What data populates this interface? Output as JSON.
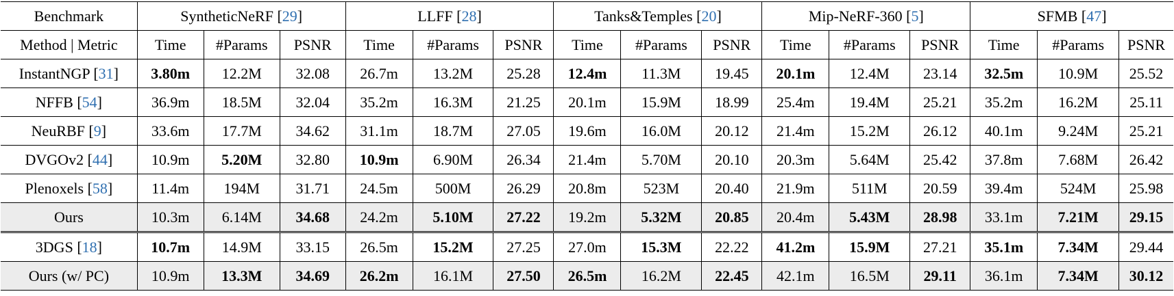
{
  "header": {
    "benchmark_label": "Benchmark",
    "datasets": [
      {
        "name": "SyntheticNeRF",
        "cite": "29"
      },
      {
        "name": "LLFF",
        "cite": "28"
      },
      {
        "name": "Tanks&Temples",
        "cite": "20"
      },
      {
        "name": "Mip-NeRF-360",
        "cite": "5"
      },
      {
        "name": "SFMB",
        "cite": "47"
      }
    ],
    "method_metric_label": "Method | Metric",
    "metrics": [
      "Time",
      "#Params",
      "PSNR"
    ]
  },
  "rows": [
    {
      "method": "InstantNGP",
      "cite": "31",
      "shaded": false,
      "cells": [
        {
          "v": "3.80m",
          "b": true
        },
        {
          "v": "12.2M",
          "b": false
        },
        {
          "v": "32.08",
          "b": false
        },
        {
          "v": "26.7m",
          "b": false
        },
        {
          "v": "13.2M",
          "b": false
        },
        {
          "v": "25.28",
          "b": false
        },
        {
          "v": "12.4m",
          "b": true
        },
        {
          "v": "11.3M",
          "b": false
        },
        {
          "v": "19.45",
          "b": false
        },
        {
          "v": "20.1m",
          "b": true
        },
        {
          "v": "12.4M",
          "b": false
        },
        {
          "v": "23.14",
          "b": false
        },
        {
          "v": "32.5m",
          "b": true
        },
        {
          "v": "10.9M",
          "b": false
        },
        {
          "v": "25.52",
          "b": false
        }
      ]
    },
    {
      "method": "NFFB",
      "cite": "54",
      "shaded": false,
      "cells": [
        {
          "v": "36.9m",
          "b": false
        },
        {
          "v": "18.5M",
          "b": false
        },
        {
          "v": "32.04",
          "b": false
        },
        {
          "v": "35.2m",
          "b": false
        },
        {
          "v": "16.3M",
          "b": false
        },
        {
          "v": "21.25",
          "b": false
        },
        {
          "v": "20.1m",
          "b": false
        },
        {
          "v": "15.9M",
          "b": false
        },
        {
          "v": "18.99",
          "b": false
        },
        {
          "v": "25.4m",
          "b": false
        },
        {
          "v": "19.4M",
          "b": false
        },
        {
          "v": "25.21",
          "b": false
        },
        {
          "v": "35.2m",
          "b": false
        },
        {
          "v": "16.2M",
          "b": false
        },
        {
          "v": "25.11",
          "b": false
        }
      ]
    },
    {
      "method": "NeuRBF",
      "cite": "9",
      "shaded": false,
      "cells": [
        {
          "v": "33.6m",
          "b": false
        },
        {
          "v": "17.7M",
          "b": false
        },
        {
          "v": "34.62",
          "b": false
        },
        {
          "v": "31.1m",
          "b": false
        },
        {
          "v": "18.7M",
          "b": false
        },
        {
          "v": "27.05",
          "b": false
        },
        {
          "v": "19.6m",
          "b": false
        },
        {
          "v": "16.0M",
          "b": false
        },
        {
          "v": "20.12",
          "b": false
        },
        {
          "v": "21.4m",
          "b": false
        },
        {
          "v": "15.2M",
          "b": false
        },
        {
          "v": "26.12",
          "b": false
        },
        {
          "v": "40.1m",
          "b": false
        },
        {
          "v": "9.24M",
          "b": false
        },
        {
          "v": "25.21",
          "b": false
        }
      ]
    },
    {
      "method": "DVGOv2",
      "cite": "44",
      "shaded": false,
      "cells": [
        {
          "v": "10.9m",
          "b": false
        },
        {
          "v": "5.20M",
          "b": true
        },
        {
          "v": "32.80",
          "b": false
        },
        {
          "v": "10.9m",
          "b": true
        },
        {
          "v": "6.90M",
          "b": false
        },
        {
          "v": "26.34",
          "b": false
        },
        {
          "v": "21.4m",
          "b": false
        },
        {
          "v": "5.70M",
          "b": false
        },
        {
          "v": "20.10",
          "b": false
        },
        {
          "v": "20.3m",
          "b": false
        },
        {
          "v": "5.64M",
          "b": false
        },
        {
          "v": "25.42",
          "b": false
        },
        {
          "v": "37.8m",
          "b": false
        },
        {
          "v": "7.68M",
          "b": false
        },
        {
          "v": "26.42",
          "b": false
        }
      ]
    },
    {
      "method": "Plenoxels",
      "cite": "58",
      "shaded": false,
      "cells": [
        {
          "v": "11.4m",
          "b": false
        },
        {
          "v": "194M",
          "b": false
        },
        {
          "v": "31.71",
          "b": false
        },
        {
          "v": "24.5m",
          "b": false
        },
        {
          "v": "500M",
          "b": false
        },
        {
          "v": "26.29",
          "b": false
        },
        {
          "v": "20.8m",
          "b": false
        },
        {
          "v": "523M",
          "b": false
        },
        {
          "v": "20.40",
          "b": false
        },
        {
          "v": "21.9m",
          "b": false
        },
        {
          "v": "511M",
          "b": false
        },
        {
          "v": "20.59",
          "b": false
        },
        {
          "v": "39.4m",
          "b": false
        },
        {
          "v": "524M",
          "b": false
        },
        {
          "v": "25.98",
          "b": false
        }
      ]
    },
    {
      "method": "Ours",
      "cite": "",
      "shaded": true,
      "cells": [
        {
          "v": "10.3m",
          "b": false
        },
        {
          "v": "6.14M",
          "b": false
        },
        {
          "v": "34.68",
          "b": true
        },
        {
          "v": "24.2m",
          "b": false
        },
        {
          "v": "5.10M",
          "b": true
        },
        {
          "v": "27.22",
          "b": true
        },
        {
          "v": "19.2m",
          "b": false
        },
        {
          "v": "5.32M",
          "b": true
        },
        {
          "v": "20.85",
          "b": true
        },
        {
          "v": "20.4m",
          "b": false
        },
        {
          "v": "5.43M",
          "b": true
        },
        {
          "v": "28.98",
          "b": true
        },
        {
          "v": "33.1m",
          "b": false
        },
        {
          "v": "7.21M",
          "b": true
        },
        {
          "v": "29.15",
          "b": true
        }
      ]
    },
    {
      "method": "3DGS",
      "cite": "18",
      "shaded": false,
      "double_above": true,
      "cells": [
        {
          "v": "10.7m",
          "b": true
        },
        {
          "v": "14.9M",
          "b": false
        },
        {
          "v": "33.15",
          "b": false
        },
        {
          "v": "26.5m",
          "b": false
        },
        {
          "v": "15.2M",
          "b": true
        },
        {
          "v": "27.25",
          "b": false
        },
        {
          "v": "27.0m",
          "b": false
        },
        {
          "v": "15.3M",
          "b": true
        },
        {
          "v": "22.22",
          "b": false
        },
        {
          "v": "41.2m",
          "b": true
        },
        {
          "v": "15.9M",
          "b": true
        },
        {
          "v": "27.21",
          "b": false
        },
        {
          "v": "35.1m",
          "b": true
        },
        {
          "v": "7.34M",
          "b": true
        },
        {
          "v": "29.44",
          "b": false
        }
      ]
    },
    {
      "method": "Ours (w/ PC)",
      "cite": "",
      "shaded": true,
      "cells": [
        {
          "v": "10.9m",
          "b": false
        },
        {
          "v": "13.3M",
          "b": true
        },
        {
          "v": "34.69",
          "b": true
        },
        {
          "v": "26.2m",
          "b": true
        },
        {
          "v": "16.1M",
          "b": false
        },
        {
          "v": "27.50",
          "b": true
        },
        {
          "v": "26.5m",
          "b": true
        },
        {
          "v": "16.2M",
          "b": false
        },
        {
          "v": "22.45",
          "b": true
        },
        {
          "v": "42.1m",
          "b": false
        },
        {
          "v": "16.5M",
          "b": false
        },
        {
          "v": "29.11",
          "b": true
        },
        {
          "v": "36.1m",
          "b": false
        },
        {
          "v": "7.34M",
          "b": true
        },
        {
          "v": "30.12",
          "b": true
        }
      ]
    }
  ]
}
